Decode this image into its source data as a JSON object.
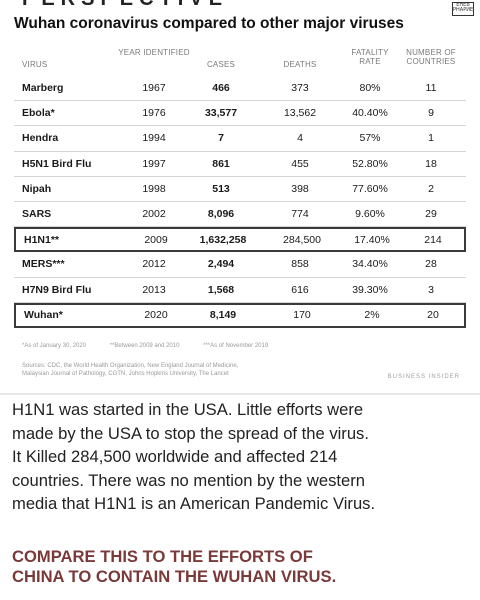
{
  "header": {
    "top_clipped_text": "PERSPECTIVE",
    "corner_logo": "ЕНЕВ РНАРИЕ",
    "title": "Wuhan coronavirus compared to other major viruses"
  },
  "table": {
    "columns": {
      "virus": "VIRUS",
      "year": "YEAR IDENTIFIED",
      "cases": "CASES",
      "deaths": "DEATHS",
      "rate": "FATALITY RATE",
      "countries": "NUMBER OF COUNTRIES"
    },
    "rows": [
      {
        "virus": "Marberg",
        "year": "1967",
        "cases": "466",
        "deaths": "373",
        "rate": "80%",
        "countries": "11",
        "boxed": false
      },
      {
        "virus": "Ebola*",
        "year": "1976",
        "cases": "33,577",
        "deaths": "13,562",
        "rate": "40.40%",
        "countries": "9",
        "boxed": false
      },
      {
        "virus": "Hendra",
        "year": "1994",
        "cases": "7",
        "deaths": "4",
        "rate": "57%",
        "countries": "1",
        "boxed": false
      },
      {
        "virus": "H5N1 Bird Flu",
        "year": "1997",
        "cases": "861",
        "deaths": "455",
        "rate": "52.80%",
        "countries": "18",
        "boxed": false
      },
      {
        "virus": "Nipah",
        "year": "1998",
        "cases": "513",
        "deaths": "398",
        "rate": "77.60%",
        "countries": "2",
        "boxed": false
      },
      {
        "virus": "SARS",
        "year": "2002",
        "cases": "8,096",
        "deaths": "774",
        "rate": "9.60%",
        "countries": "29",
        "boxed": false
      },
      {
        "virus": "H1N1**",
        "year": "2009",
        "cases": "1,632,258",
        "deaths": "284,500",
        "rate": "17.40%",
        "countries": "214",
        "boxed": true
      },
      {
        "virus": "MERS***",
        "year": "2012",
        "cases": "2,494",
        "deaths": "858",
        "rate": "34.40%",
        "countries": "28",
        "boxed": false
      },
      {
        "virus": "H7N9 Bird Flu",
        "year": "2013",
        "cases": "1,568",
        "deaths": "616",
        "rate": "39.30%",
        "countries": "3",
        "boxed": false
      },
      {
        "virus": "Wuhan*",
        "year": "2020",
        "cases": "8,149",
        "deaths": "170",
        "rate": "2%",
        "countries": "20",
        "boxed": true
      }
    ]
  },
  "footnotes": {
    "note1": "*As of January 30, 2020",
    "note2": "**Between 2009 and 2010",
    "note3": "***As of November 2019"
  },
  "sources": {
    "line1": "Sources: CDC, the World Health Organization, New England Journal of Medicine,",
    "line2": "Malaysian Journal of Pathology, CGTN, Johns Hopkins University, The Lancet"
  },
  "brand": "BUSINESS INSIDER",
  "paragraph": [
    "H1N1 was started in the USA. Little efforts were",
    "made by the USA to stop the spread of the virus.",
    "It Killed 284,500 worldwide and affected 214",
    "countries. There was no mention by the western",
    "media that H1N1 is an American Pandemic Virus."
  ],
  "callout": [
    "COMPARE THIS TO THE EFFORTS OF",
    "CHINA TO CONTAIN THE WUHAN VIRUS."
  ]
}
